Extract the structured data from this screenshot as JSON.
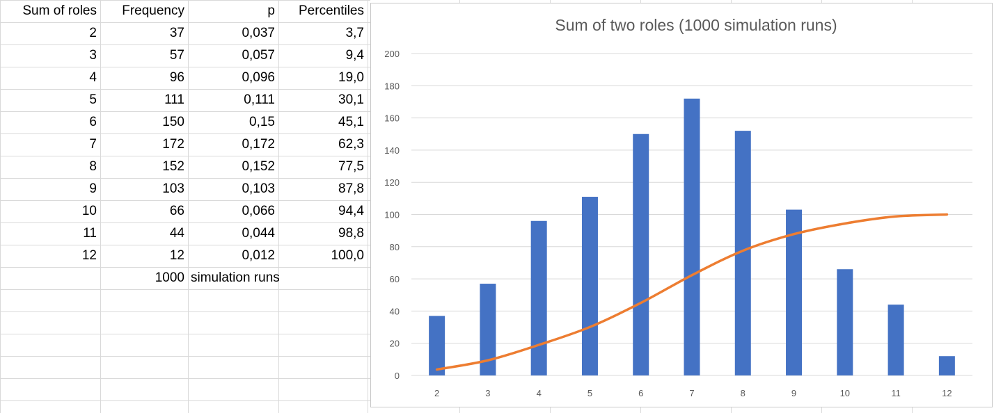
{
  "table": {
    "headers": [
      "Sum of roles",
      "Frequency",
      "p",
      "Percentiles"
    ],
    "rows": [
      [
        "2",
        "37",
        "0,037",
        "3,7"
      ],
      [
        "3",
        "57",
        "0,057",
        "9,4"
      ],
      [
        "4",
        "96",
        "0,096",
        "19,0"
      ],
      [
        "5",
        "111",
        "0,111",
        "30,1"
      ],
      [
        "6",
        "150",
        "0,15",
        "45,1"
      ],
      [
        "7",
        "172",
        "0,172",
        "62,3"
      ],
      [
        "8",
        "152",
        "0,152",
        "77,5"
      ],
      [
        "9",
        "103",
        "0,103",
        "87,8"
      ],
      [
        "10",
        "66",
        "0,066",
        "94,4"
      ],
      [
        "11",
        "44",
        "0,044",
        "98,8"
      ],
      [
        "12",
        "12",
        "0,012",
        "100,0"
      ]
    ],
    "footer": {
      "total": "1000",
      "label": "simulation runs"
    }
  },
  "chart_data": {
    "type": "bar",
    "title": "Sum of two roles (1000 simulation runs)",
    "categories": [
      "2",
      "3",
      "4",
      "5",
      "6",
      "7",
      "8",
      "9",
      "10",
      "11",
      "12"
    ],
    "series": [
      {
        "type": "bar",
        "color": "#4472C4",
        "values": [
          37,
          57,
          96,
          111,
          150,
          172,
          152,
          103,
          66,
          44,
          12
        ]
      },
      {
        "type": "line",
        "color": "#ED7D31",
        "values": [
          3.7,
          9.4,
          19.0,
          30.1,
          45.1,
          62.3,
          77.5,
          87.8,
          94.4,
          98.8,
          100.0
        ]
      }
    ],
    "ylim": [
      0,
      200
    ],
    "yticks": [
      0,
      20,
      40,
      60,
      80,
      100,
      120,
      140,
      160,
      180,
      200
    ],
    "grid": true,
    "legend": "none"
  }
}
